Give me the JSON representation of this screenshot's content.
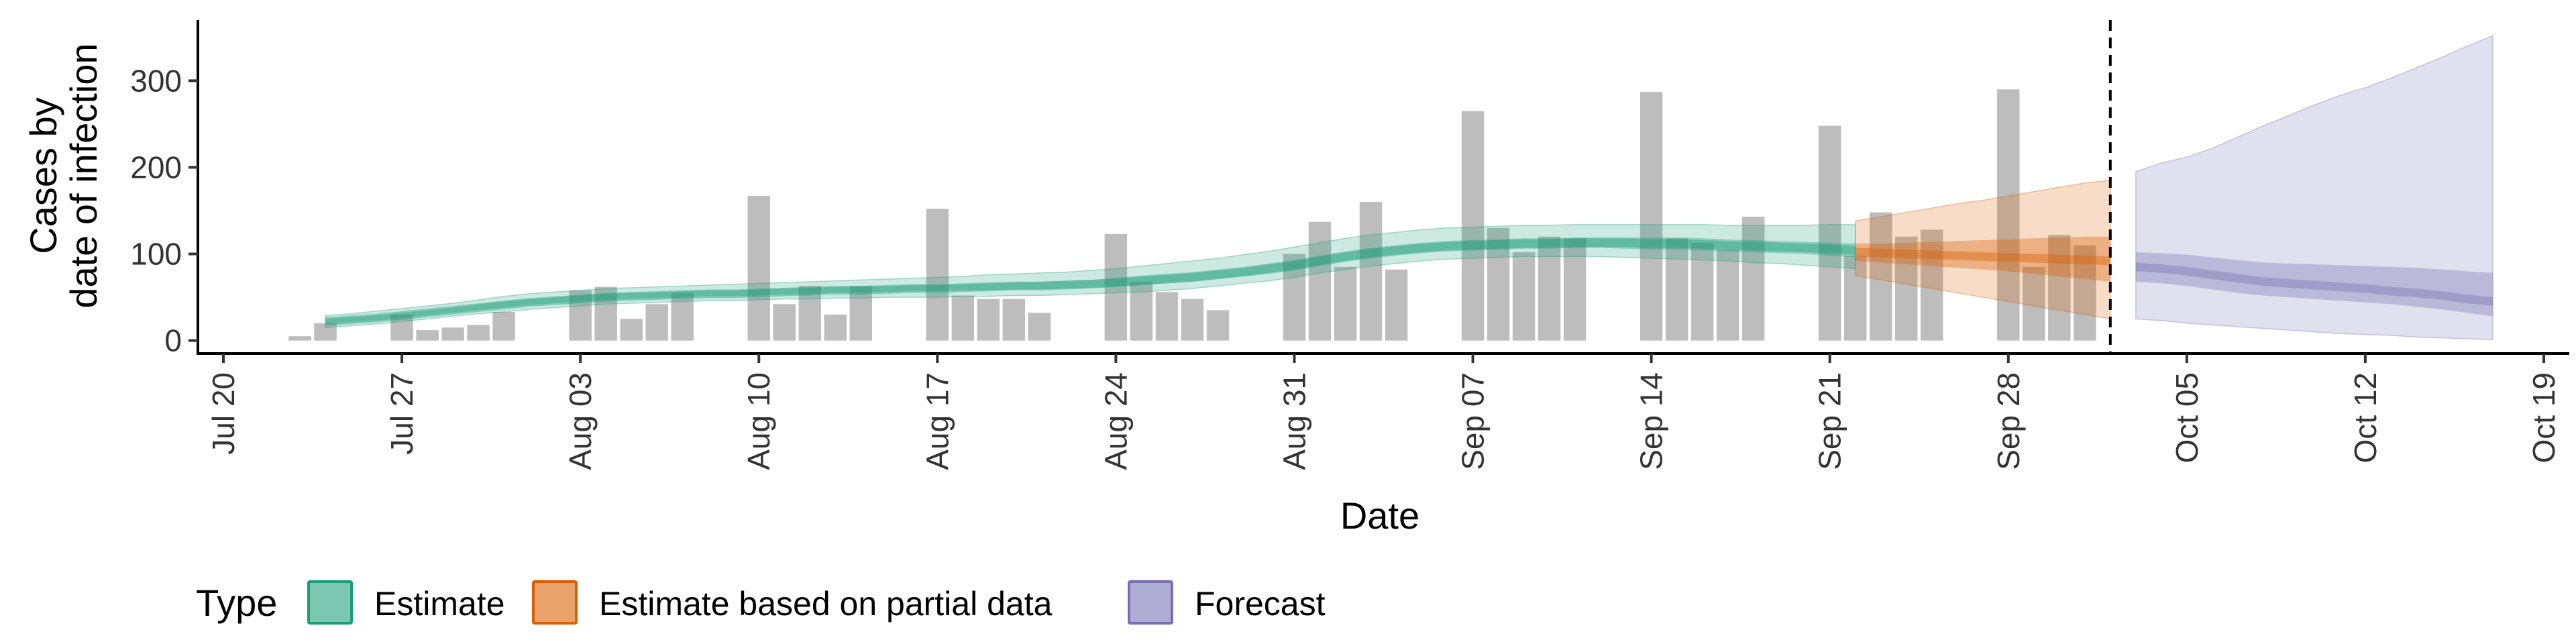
{
  "chart_data": {
    "type": "bar",
    "xlabel": "Date",
    "ylabel_lines": [
      "Cases by",
      "date of infection"
    ],
    "x_range": [
      "2020-07-19",
      "2020-10-20"
    ],
    "ylim": [
      -15,
      370
    ],
    "y_ticks": [
      {
        "value": 0,
        "label": "0"
      },
      {
        "value": 100,
        "label": "100"
      },
      {
        "value": 200,
        "label": "200"
      },
      {
        "value": 300,
        "label": "300"
      }
    ],
    "x_ticks": [
      {
        "date": "2020-07-20",
        "label": "Jul 20"
      },
      {
        "date": "2020-07-27",
        "label": "Jul 27"
      },
      {
        "date": "2020-08-03",
        "label": "Aug 03"
      },
      {
        "date": "2020-08-10",
        "label": "Aug 10"
      },
      {
        "date": "2020-08-17",
        "label": "Aug 17"
      },
      {
        "date": "2020-08-24",
        "label": "Aug 24"
      },
      {
        "date": "2020-08-31",
        "label": "Aug 31"
      },
      {
        "date": "2020-09-07",
        "label": "Sep 07"
      },
      {
        "date": "2020-09-14",
        "label": "Sep 14"
      },
      {
        "date": "2020-09-21",
        "label": "Sep 21"
      },
      {
        "date": "2020-09-28",
        "label": "Sep 28"
      },
      {
        "date": "2020-10-05",
        "label": "Oct 05"
      },
      {
        "date": "2020-10-12",
        "label": "Oct 12"
      },
      {
        "date": "2020-10-19",
        "label": "Oct 19"
      }
    ],
    "grid": false,
    "bar_color": "#bdbdbd",
    "bars": {
      "start_date": "2020-07-23",
      "values": [
        5,
        20,
        0,
        0,
        30,
        12,
        15,
        18,
        33,
        0,
        0,
        58,
        62,
        25,
        42,
        55,
        0,
        0,
        167,
        42,
        63,
        30,
        63,
        0,
        0,
        152,
        52,
        48,
        48,
        32,
        0,
        0,
        123,
        68,
        56,
        48,
        35,
        0,
        0,
        100,
        137,
        85,
        160,
        82,
        0,
        0,
        265,
        130,
        102,
        120,
        118,
        0,
        0,
        287,
        118,
        113,
        105,
        143,
        0,
        0,
        248,
        98,
        148,
        120,
        128,
        0,
        0,
        290,
        85,
        122,
        110
      ]
    },
    "series": [
      {
        "name": "Estimate",
        "color": "#1b9e77",
        "start_date": "2020-07-24",
        "median": [
          22,
          24,
          26,
          29,
          32,
          35,
          38,
          41,
          44,
          46,
          48,
          50,
          51,
          52,
          53,
          54,
          54,
          55,
          56,
          57,
          58,
          58,
          59,
          60,
          60,
          61,
          62,
          63,
          63,
          64,
          65,
          67,
          69,
          71,
          73,
          76,
          79,
          83,
          87,
          92,
          97,
          101,
          104,
          107,
          109,
          110,
          111,
          112,
          112,
          113,
          113,
          113,
          112,
          112,
          111,
          110,
          109,
          108,
          107,
          106,
          104
        ],
        "inner": [
          [
            19,
            25
          ],
          [
            21,
            27
          ],
          [
            23,
            29
          ],
          [
            26,
            32
          ],
          [
            29,
            35
          ],
          [
            32,
            38
          ],
          [
            35,
            42
          ],
          [
            38,
            45
          ],
          [
            41,
            48
          ],
          [
            43,
            50
          ],
          [
            45,
            52
          ],
          [
            47,
            54
          ],
          [
            48,
            55
          ],
          [
            49,
            56
          ],
          [
            50,
            57
          ],
          [
            51,
            58
          ],
          [
            51,
            58
          ],
          [
            52,
            59
          ],
          [
            53,
            60
          ],
          [
            54,
            61
          ],
          [
            55,
            62
          ],
          [
            55,
            62
          ],
          [
            56,
            63
          ],
          [
            57,
            64
          ],
          [
            57,
            64
          ],
          [
            58,
            65
          ],
          [
            58,
            66
          ],
          [
            59,
            67
          ],
          [
            59,
            68
          ],
          [
            60,
            69
          ],
          [
            61,
            70
          ],
          [
            62,
            72
          ],
          [
            64,
            75
          ],
          [
            66,
            77
          ],
          [
            68,
            79
          ],
          [
            71,
            82
          ],
          [
            74,
            85
          ],
          [
            77,
            89
          ],
          [
            81,
            93
          ],
          [
            86,
            98
          ],
          [
            91,
            103
          ],
          [
            95,
            107
          ],
          [
            98,
            110
          ],
          [
            101,
            113
          ],
          [
            103,
            115
          ],
          [
            104,
            116
          ],
          [
            105,
            117
          ],
          [
            106,
            118
          ],
          [
            106,
            118
          ],
          [
            107,
            119
          ],
          [
            107,
            119
          ],
          [
            106,
            119
          ],
          [
            105,
            119
          ],
          [
            105,
            119
          ],
          [
            104,
            118
          ],
          [
            103,
            117
          ],
          [
            102,
            116
          ],
          [
            101,
            115
          ],
          [
            100,
            114
          ],
          [
            98,
            113
          ],
          [
            96,
            112
          ]
        ],
        "outer": [
          [
            15,
            29
          ],
          [
            17,
            31
          ],
          [
            19,
            34
          ],
          [
            22,
            37
          ],
          [
            25,
            40
          ],
          [
            28,
            43
          ],
          [
            31,
            47
          ],
          [
            33,
            51
          ],
          [
            36,
            54
          ],
          [
            38,
            56
          ],
          [
            40,
            58
          ],
          [
            42,
            60
          ],
          [
            43,
            61
          ],
          [
            44,
            62
          ],
          [
            45,
            63
          ],
          [
            46,
            64
          ],
          [
            46,
            65
          ],
          [
            47,
            66
          ],
          [
            48,
            67
          ],
          [
            48,
            68
          ],
          [
            49,
            69
          ],
          [
            49,
            70
          ],
          [
            50,
            71
          ],
          [
            50,
            72
          ],
          [
            50,
            73
          ],
          [
            51,
            74
          ],
          [
            51,
            76
          ],
          [
            52,
            77
          ],
          [
            52,
            78
          ],
          [
            53,
            79
          ],
          [
            54,
            81
          ],
          [
            55,
            83
          ],
          [
            56,
            86
          ],
          [
            58,
            89
          ],
          [
            60,
            92
          ],
          [
            63,
            95
          ],
          [
            66,
            99
          ],
          [
            69,
            103
          ],
          [
            73,
            108
          ],
          [
            78,
            113
          ],
          [
            82,
            118
          ],
          [
            86,
            122
          ],
          [
            89,
            125
          ],
          [
            92,
            128
          ],
          [
            94,
            130
          ],
          [
            95,
            131
          ],
          [
            96,
            132
          ],
          [
            97,
            133
          ],
          [
            97,
            133
          ],
          [
            97,
            134
          ],
          [
            97,
            134
          ],
          [
            96,
            134
          ],
          [
            95,
            134
          ],
          [
            94,
            134
          ],
          [
            93,
            134
          ],
          [
            92,
            133
          ],
          [
            90,
            133
          ],
          [
            89,
            133
          ],
          [
            87,
            133
          ],
          [
            85,
            134
          ],
          [
            83,
            134
          ]
        ]
      },
      {
        "name": "Estimate based on partial data",
        "color": "#d95f02",
        "start_date": "2020-09-22",
        "median": [
          102,
          101,
          100,
          99,
          98,
          97,
          96,
          95,
          94,
          93,
          92
        ],
        "inner": [
          [
            92,
            112
          ],
          [
            90,
            112
          ],
          [
            88,
            113
          ],
          [
            86,
            114
          ],
          [
            84,
            115
          ],
          [
            82,
            116
          ],
          [
            80,
            117
          ],
          [
            77,
            118
          ],
          [
            74,
            119
          ],
          [
            71,
            120
          ],
          [
            68,
            120
          ]
        ],
        "outer": [
          [
            75,
            138
          ],
          [
            70,
            143
          ],
          [
            65,
            148
          ],
          [
            60,
            153
          ],
          [
            55,
            158
          ],
          [
            50,
            162
          ],
          [
            45,
            167
          ],
          [
            40,
            172
          ],
          [
            35,
            177
          ],
          [
            30,
            182
          ],
          [
            25,
            185
          ]
        ]
      },
      {
        "name": "Forecast",
        "color": "#7570b3",
        "start_date": "2020-10-03",
        "median": [
          85,
          83,
          80,
          76,
          72,
          68,
          66,
          64,
          62,
          60,
          57,
          55,
          52,
          48,
          45
        ],
        "inner": [
          [
            68,
            102
          ],
          [
            66,
            101
          ],
          [
            63,
            99
          ],
          [
            59,
            96
          ],
          [
            55,
            93
          ],
          [
            52,
            90
          ],
          [
            50,
            89
          ],
          [
            48,
            88
          ],
          [
            46,
            87
          ],
          [
            44,
            86
          ],
          [
            42,
            85
          ],
          [
            39,
            84
          ],
          [
            36,
            82
          ],
          [
            32,
            80
          ],
          [
            28,
            78
          ]
        ],
        "outer": [
          [
            25,
            195
          ],
          [
            23,
            205
          ],
          [
            20,
            212
          ],
          [
            18,
            222
          ],
          [
            16,
            235
          ],
          [
            14,
            248
          ],
          [
            12,
            260
          ],
          [
            10,
            272
          ],
          [
            8,
            283
          ],
          [
            7,
            292
          ],
          [
            6,
            303
          ],
          [
            4,
            315
          ],
          [
            3,
            327
          ],
          [
            2,
            340
          ],
          [
            1,
            352
          ]
        ]
      }
    ],
    "vline_date": "2020-10-02",
    "legend": {
      "title": "Type",
      "position": "bottom",
      "items": [
        {
          "label": "Estimate",
          "color": "#1b9e77"
        },
        {
          "label": "Estimate based on partial data",
          "color": "#d95f02"
        },
        {
          "label": "Forecast",
          "color": "#7570b3"
        }
      ]
    }
  }
}
